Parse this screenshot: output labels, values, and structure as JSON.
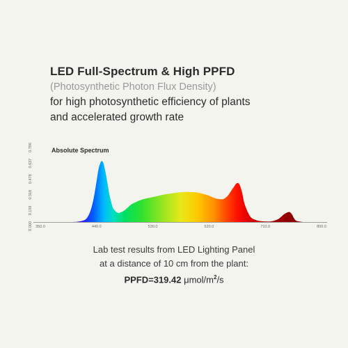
{
  "heading": {
    "title": "LED Full-Spectrum & High PPFD",
    "subtitle": "(Photosynthetic Photon Flux Density)",
    "tagline_1": "for high photosynthetic efficiency of plants",
    "tagline_2": "and accelerated growth rate"
  },
  "chart_data": {
    "type": "area",
    "title": "Absolute Spectrum",
    "xlabel": "",
    "ylabel": "",
    "x_ticks": [
      "350.0",
      "440.0",
      "530.0",
      "620.0",
      "710.0",
      "800.0"
    ],
    "y_ticks": [
      "0.000",
      "0.159",
      "0.318",
      "0.478",
      "0.637",
      "0.796"
    ],
    "xlim": [
      350,
      800
    ],
    "ylim": [
      0,
      0.796
    ],
    "grid": false,
    "series": [
      {
        "x": [
          400,
          410,
          420,
          425,
          430,
          435,
          440,
          443,
          446,
          448,
          450,
          452,
          455,
          458,
          460,
          463,
          466,
          470,
          475,
          480,
          485,
          490,
          495,
          500,
          510,
          520,
          530,
          540,
          550,
          560,
          570,
          580,
          590,
          600,
          610,
          620,
          630,
          640,
          645,
          650,
          655,
          660,
          663,
          666,
          668,
          670,
          673,
          676,
          680,
          685,
          690,
          700,
          710,
          720,
          730,
          735,
          740,
          745,
          748,
          750,
          753,
          756,
          760,
          770
        ],
        "y": [
          0,
          0.004,
          0.02,
          0.05,
          0.12,
          0.25,
          0.45,
          0.58,
          0.65,
          0.67,
          0.66,
          0.62,
          0.52,
          0.4,
          0.32,
          0.23,
          0.16,
          0.12,
          0.1,
          0.11,
          0.13,
          0.16,
          0.19,
          0.21,
          0.24,
          0.26,
          0.275,
          0.29,
          0.305,
          0.315,
          0.325,
          0.33,
          0.33,
          0.325,
          0.31,
          0.29,
          0.26,
          0.25,
          0.26,
          0.29,
          0.34,
          0.39,
          0.42,
          0.43,
          0.42,
          0.39,
          0.32,
          0.22,
          0.14,
          0.07,
          0.035,
          0.012,
          0.006,
          0.008,
          0.03,
          0.055,
          0.085,
          0.105,
          0.11,
          0.105,
          0.08,
          0.04,
          0.012,
          0
        ]
      }
    ]
  },
  "footer": {
    "line_1": "Lab test results from LED Lighting Panel",
    "line_2": "at a distance of 10 cm from the plant:",
    "ppfd_label": "PPFD=319.42",
    "ppfd_unit": "μmol/m",
    "ppfd_unit_sup": "2",
    "ppfd_unit_end": "/s"
  }
}
